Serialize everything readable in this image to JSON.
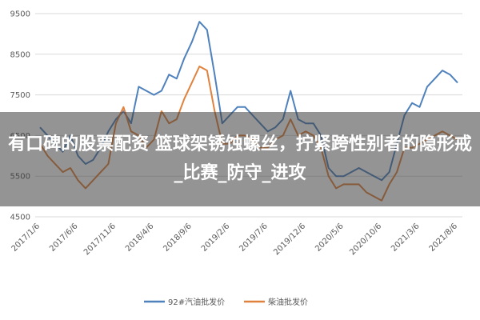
{
  "chart_data": {
    "type": "line",
    "categories": [
      "2017/1/6",
      null,
      null,
      null,
      null,
      "2017/6/6",
      null,
      null,
      null,
      null,
      "2017/11/6",
      null,
      null,
      null,
      null,
      "2018/4/6",
      null,
      null,
      null,
      null,
      "2018/9/6",
      null,
      null,
      null,
      null,
      "2019/2/6",
      null,
      null,
      null,
      null,
      "2019/7/6",
      null,
      null,
      null,
      null,
      "2019/12/6",
      null,
      null,
      null,
      null,
      "2020/5/6",
      null,
      null,
      null,
      null,
      "2020/10/6",
      null,
      null,
      null,
      null,
      "2021/3/6",
      null,
      null,
      null,
      null,
      "2021/8/6"
    ],
    "series": [
      {
        "name": "92#汽油批发价",
        "color": "#4f81bd",
        "values": [
          6700,
          6500,
          6300,
          6100,
          6500,
          6000,
          5800,
          5900,
          6200,
          6600,
          6900,
          7100,
          6800,
          7700,
          7600,
          7500,
          7600,
          8000,
          7900,
          8400,
          8800,
          9300,
          9100,
          8000,
          6800,
          7000,
          7200,
          7200,
          7000,
          6800,
          6600,
          6700,
          6900,
          7600,
          6900,
          6800,
          6800,
          6500,
          5700,
          5500,
          5500,
          5600,
          5700,
          5600,
          5500,
          5400,
          5600,
          6300,
          7000,
          7300,
          7200,
          7700,
          7900,
          8100,
          8000,
          7800
        ]
      },
      {
        "name": "柴油批发价",
        "color": "#e0823d",
        "values": [
          6300,
          6000,
          5800,
          5600,
          5700,
          5400,
          5200,
          5400,
          5600,
          5800,
          6800,
          7200,
          6600,
          6500,
          6200,
          6400,
          7100,
          6800,
          6900,
          7400,
          7800,
          8200,
          8100,
          7100,
          6300,
          6300,
          6500,
          6500,
          6400,
          6200,
          6200,
          6400,
          6500,
          6900,
          6500,
          6600,
          6500,
          6200,
          5500,
          5200,
          5300,
          5300,
          5300,
          5100,
          5000,
          4900,
          5300,
          5600,
          6200,
          6200,
          6300,
          6400,
          6500,
          6600,
          6500,
          6400
        ]
      }
    ],
    "ylim": [
      4500,
      9500
    ],
    "yticks": [
      4500,
      5500,
      6500,
      7500,
      8500,
      9500
    ],
    "grid": true
  },
  "overlay_text": "有口碑的股票配资 篮球架锈蚀螺丝，拧紧跨性别者的隐形戒_比赛_防守_进攻"
}
